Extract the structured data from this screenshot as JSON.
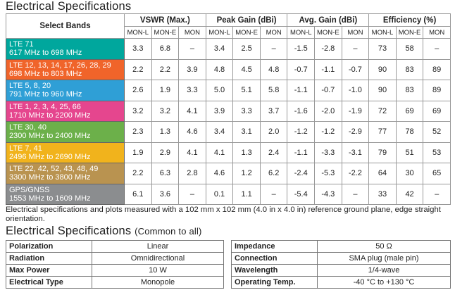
{
  "title": "Electrical Specifications",
  "table": {
    "band_header": "Select Bands",
    "groups": [
      {
        "name": "VSWR (Max.)",
        "columns": [
          "MON-L",
          "MON-E",
          "MON"
        ]
      },
      {
        "name": "Peak Gain (dBi)",
        "columns": [
          "MON-L",
          "MON-E",
          "MON"
        ]
      },
      {
        "name": "Avg. Gain (dBi)",
        "columns": [
          "MON-L",
          "MON-E",
          "MON"
        ]
      },
      {
        "name": "Efficiency (%)",
        "columns": [
          "MON-L",
          "MON-E",
          "MON"
        ]
      }
    ],
    "rows": [
      {
        "band": "LTE 71",
        "range": "617 MHz to 698 MHz",
        "values": [
          "3.3",
          "6.8",
          "–",
          "3.4",
          "2.5",
          "–",
          "-1.5",
          "-2.8",
          "–",
          "73",
          "58",
          "–"
        ]
      },
      {
        "band": "LTE 12, 13, 14, 17, 26, 28, 29",
        "range": "698 MHz to 803 MHz",
        "values": [
          "2.2",
          "2.2",
          "3.9",
          "4.8",
          "4.5",
          "4.8",
          "-0.7",
          "-1.1",
          "-0.7",
          "90",
          "83",
          "89"
        ]
      },
      {
        "band": "LTE 5, 8, 20",
        "range": "791 MHz to 960 MHz",
        "values": [
          "2.6",
          "1.9",
          "3.3",
          "5.0",
          "5.1",
          "5.8",
          "-1.1",
          "-0.7",
          "-1.0",
          "90",
          "83",
          "89"
        ]
      },
      {
        "band": "LTE 1, 2, 3, 4, 25, 66",
        "range": "1710 MHz to 2200 MHz",
        "values": [
          "3.2",
          "3.2",
          "4.1",
          "3.9",
          "3.3",
          "3.7",
          "-1.6",
          "-2.0",
          "-1.9",
          "72",
          "69",
          "69"
        ]
      },
      {
        "band": "LTE 30, 40",
        "range": "2300 MHz to 2400 MHz",
        "values": [
          "2.3",
          "1.3",
          "4.6",
          "3.4",
          "3.1",
          "2.0",
          "-1.2",
          "-1.2",
          "-2.9",
          "77",
          "78",
          "52"
        ]
      },
      {
        "band": "LTE 7, 41",
        "range": "2496 MHz to 2690 MHz",
        "values": [
          "1.9",
          "2.9",
          "4.1",
          "4.1",
          "1.3",
          "2.4",
          "-1.1",
          "-3.3",
          "-3.1",
          "79",
          "51",
          "53"
        ]
      },
      {
        "band": "LTE 22, 42, 52, 43, 48, 49",
        "range": "3300 MHz to 3800 MHz",
        "values": [
          "2.2",
          "6.3",
          "2.8",
          "4.6",
          "1.2",
          "6.2",
          "-2.4",
          "-5.3",
          "-2.2",
          "64",
          "30",
          "65"
        ]
      },
      {
        "band": "GPS/GNSS",
        "range": "1553 MHz to 1609 MHz",
        "values": [
          "6.1",
          "3.6",
          "–",
          "0.1",
          "1.1",
          "–",
          "-5.4",
          "-4.3",
          "–",
          "33",
          "42",
          "–"
        ]
      }
    ]
  },
  "footnote": "Electrical specifications and plots measured with a 102 mm x 102 mm (4.0 in x 4.0 in) reference ground plane, edge straight orientation.",
  "common": {
    "title": "Electrical Specifications",
    "subtitle": "(Common to all)",
    "left": [
      [
        "Polarization",
        "Linear"
      ],
      [
        "Radiation",
        "Omnidirectional"
      ],
      [
        "Max Power",
        "10 W"
      ],
      [
        "Electrical Type",
        "Monopole"
      ]
    ],
    "right": [
      [
        "Impedance",
        "50 Ω"
      ],
      [
        "Connection",
        "SMA plug (male pin)"
      ],
      [
        "Wavelength",
        "1/4-wave"
      ],
      [
        "Operating Temp.",
        "-40 °C to +130 °C"
      ]
    ]
  }
}
